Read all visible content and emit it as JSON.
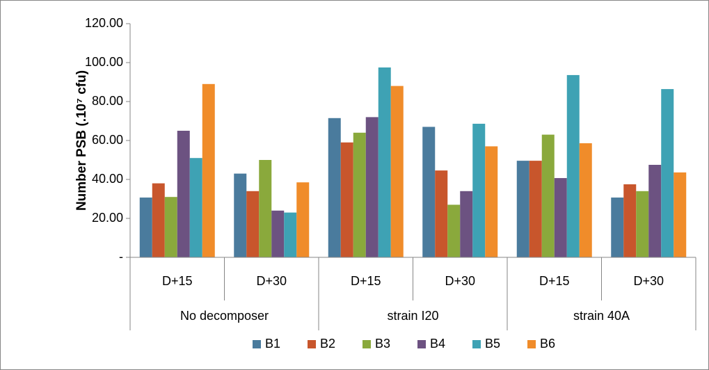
{
  "chart_data": {
    "type": "bar",
    "y_axis_label": "Number PSB (.10⁷ cfu)",
    "categories": [
      "D+15",
      "D+30",
      "D+15",
      "D+30",
      "D+15",
      "D+30"
    ],
    "category_groups": [
      "No decomposer",
      "strain I20",
      "strain 40A"
    ],
    "ylim": [
      0,
      120
    ],
    "yticks": [
      {
        "value": 0,
        "label": "-"
      },
      {
        "value": 20,
        "label": "20.00"
      },
      {
        "value": 40,
        "label": "40.00"
      },
      {
        "value": 60,
        "label": "60.00"
      },
      {
        "value": 80,
        "label": "80.00"
      },
      {
        "value": 100,
        "label": "100.00"
      },
      {
        "value": 120,
        "label": "120.00"
      }
    ],
    "grid": false,
    "legend": "bottom",
    "series": [
      {
        "name": "B1",
        "color": "#4a7b9d",
        "values": [
          30.7,
          43,
          71.5,
          67,
          49.6,
          30.7
        ]
      },
      {
        "name": "B2",
        "color": "#c8562c",
        "values": [
          38,
          34,
          59,
          44.6,
          49.6,
          37.5
        ]
      },
      {
        "name": "B3",
        "color": "#8aa93c",
        "values": [
          31,
          50,
          64,
          27,
          63,
          34
        ]
      },
      {
        "name": "B4",
        "color": "#6c5281",
        "values": [
          65,
          24,
          72,
          34,
          40.7,
          47.5
        ]
      },
      {
        "name": "B5",
        "color": "#3ea2b4",
        "values": [
          51,
          23,
          97.5,
          68.6,
          93.6,
          86.4
        ]
      },
      {
        "name": "B6",
        "color": "#f08c2a",
        "values": [
          89,
          38.5,
          88,
          57,
          58.6,
          43.6
        ]
      }
    ]
  }
}
